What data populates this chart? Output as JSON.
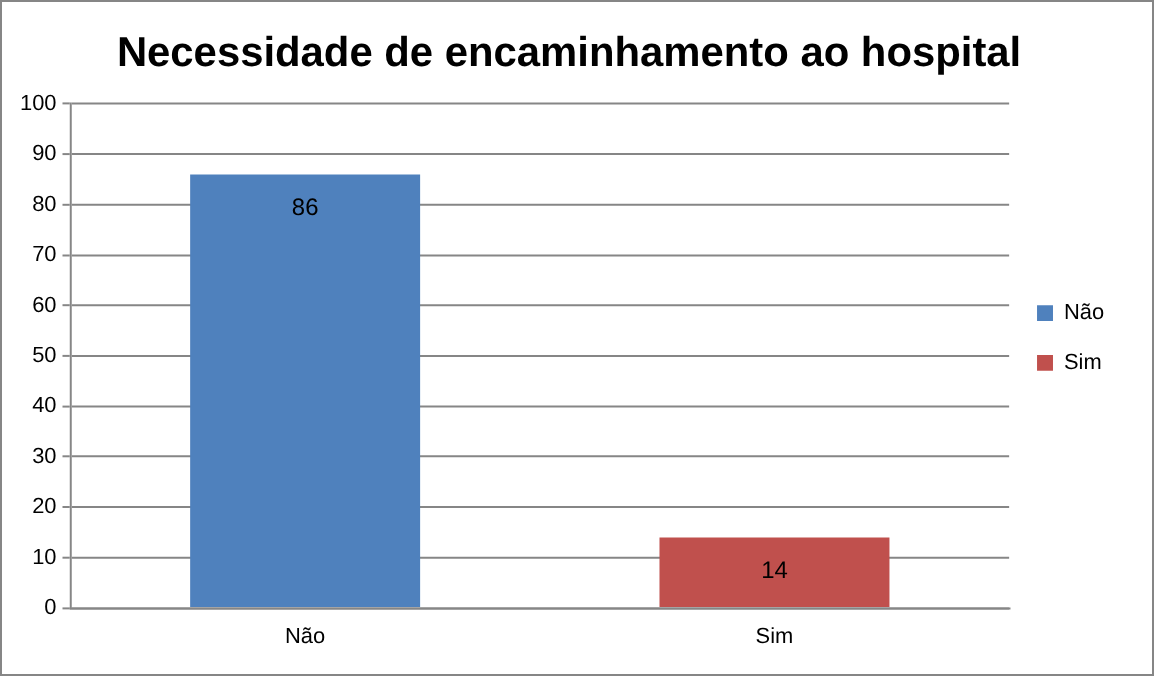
{
  "chart_data": {
    "type": "bar",
    "title": "Necessidade de encaminhamento ao hospital",
    "categories": [
      "Não",
      "Sim"
    ],
    "stacked": true,
    "series": [
      {
        "name": "Não",
        "color": "#4f81bd",
        "values": [
          86,
          null
        ]
      },
      {
        "name": "Sim",
        "color": "#c0504d",
        "values": [
          null,
          14
        ]
      }
    ],
    "ylim": [
      0,
      100
    ],
    "yticks": [
      0,
      10,
      20,
      30,
      40,
      50,
      60,
      70,
      80,
      90,
      100
    ],
    "grid": "y",
    "legend": "right",
    "data_labels": true
  }
}
